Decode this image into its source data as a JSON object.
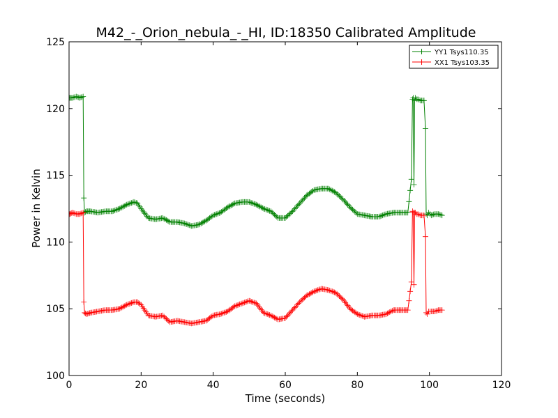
{
  "chart_data": {
    "type": "line",
    "title": "M42_-_Orion_nebula_-_HI, ID:18350 Calibrated Amplitude",
    "xlabel": "Time (seconds)",
    "ylabel": "Power in Kelvin",
    "xlim": [
      0,
      120
    ],
    "ylim": [
      100,
      125
    ],
    "xticks": [
      0,
      20,
      40,
      60,
      80,
      100,
      120
    ],
    "yticks": [
      100,
      105,
      110,
      115,
      120,
      125
    ],
    "grid": false,
    "legend_position": "top-right",
    "marker": "+",
    "series": [
      {
        "name": "YY1 Tsys110.35",
        "color": "#008000",
        "x": [
          0.2,
          1,
          2,
          3,
          3.9,
          4.1,
          4.3,
          4.8,
          6,
          8,
          10,
          12,
          14,
          16,
          18,
          19,
          20,
          22,
          24,
          26,
          28,
          30,
          32,
          34,
          36,
          38,
          40,
          42,
          44,
          46,
          48,
          50,
          52,
          54,
          56,
          58,
          60,
          62,
          64,
          66,
          68,
          70,
          72,
          74,
          76,
          78,
          80,
          82,
          84,
          86,
          88,
          90,
          92,
          94,
          95,
          95.3,
          95.5,
          95.7,
          95.9,
          96.1,
          96.4,
          96.8,
          97.5,
          98.5,
          98.9,
          99.1,
          99.4,
          99.8,
          100.5,
          101.5,
          102.5,
          103.5
        ],
        "values": [
          120.8,
          120.8,
          120.9,
          120.8,
          120.9,
          113.3,
          112.2,
          112.3,
          112.3,
          112.2,
          112.3,
          112.3,
          112.5,
          112.8,
          113.0,
          112.9,
          112.5,
          111.8,
          111.7,
          111.8,
          111.5,
          111.5,
          111.4,
          111.2,
          111.3,
          111.6,
          112.0,
          112.2,
          112.6,
          112.9,
          113.0,
          113.0,
          112.8,
          112.5,
          112.3,
          111.8,
          111.8,
          112.3,
          112.9,
          113.5,
          113.9,
          114.0,
          114.0,
          113.7,
          113.2,
          112.6,
          112.1,
          112.0,
          111.9,
          111.9,
          112.1,
          112.2,
          112.2,
          112.2,
          114.7,
          120.7,
          120.8,
          114.3,
          120.6,
          120.8,
          120.7,
          120.7,
          120.6,
          120.6,
          118.5,
          112.1,
          112.0,
          112.2,
          112.0,
          112.1,
          112.1,
          112.0
        ]
      },
      {
        "name": "XX1 Tsys103.35",
        "color": "#ff0000",
        "x": [
          0.2,
          1,
          2,
          3,
          3.9,
          4.1,
          4.3,
          4.8,
          6,
          8,
          10,
          12,
          14,
          16,
          18,
          19,
          20,
          22,
          24,
          26,
          28,
          30,
          32,
          34,
          36,
          38,
          40,
          42,
          44,
          46,
          48,
          50,
          52,
          54,
          56,
          58,
          60,
          62,
          64,
          66,
          68,
          70,
          72,
          74,
          76,
          78,
          80,
          82,
          84,
          86,
          88,
          90,
          92,
          94,
          95,
          95.3,
          95.5,
          95.7,
          95.9,
          96.1,
          96.4,
          96.8,
          97.5,
          98.5,
          98.9,
          99.1,
          99.4,
          99.8,
          100.5,
          101.5,
          102.5,
          103.5
        ],
        "values": [
          112.1,
          112.2,
          112.1,
          112.1,
          112.2,
          105.5,
          104.7,
          104.6,
          104.7,
          104.8,
          104.9,
          104.9,
          105.0,
          105.3,
          105.5,
          105.5,
          105.3,
          104.5,
          104.4,
          104.5,
          104.0,
          104.1,
          104.0,
          103.9,
          104.0,
          104.1,
          104.5,
          104.6,
          104.8,
          105.2,
          105.4,
          105.6,
          105.4,
          104.7,
          104.5,
          104.2,
          104.3,
          104.9,
          105.5,
          106.0,
          106.3,
          106.5,
          106.4,
          106.2,
          105.7,
          105.0,
          104.6,
          104.4,
          104.5,
          104.5,
          104.6,
          104.9,
          104.9,
          104.9,
          107.0,
          112.3,
          112.2,
          106.8,
          112.2,
          112.2,
          112.1,
          112.1,
          112.0,
          112.0,
          110.4,
          104.7,
          104.6,
          104.8,
          104.8,
          104.8,
          104.9,
          104.9
        ]
      }
    ]
  }
}
